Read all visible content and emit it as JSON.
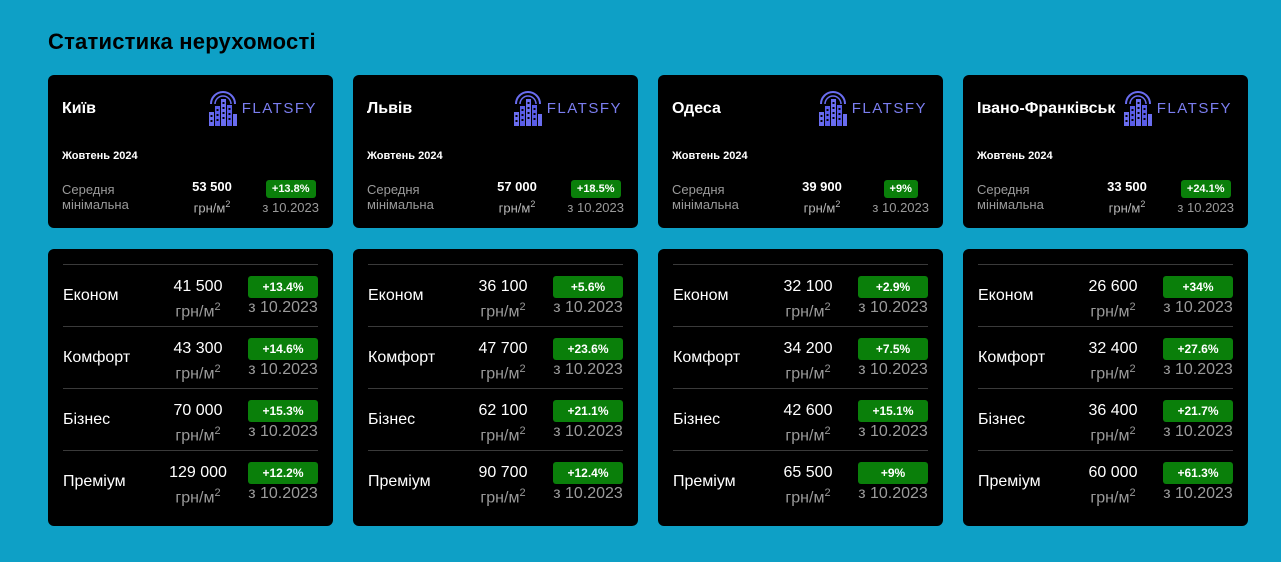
{
  "page_title": "Статистика нерухомості",
  "logo_text": "FLATSFY",
  "unit": "грн/м",
  "unit_sup": "2",
  "avg_label_line1": "Середня",
  "avg_label_line2": "мінімальна",
  "since_label": "з 10.2023",
  "cities": [
    {
      "name": "Київ",
      "period": "Жовтень 2024",
      "avg_value": "53 500",
      "avg_change": "+13.8%",
      "segments": [
        {
          "name": "Економ",
          "value": "41 500",
          "change": "+13.4%"
        },
        {
          "name": "Комфорт",
          "value": "43 300",
          "change": "+14.6%"
        },
        {
          "name": "Бізнес",
          "value": "70 000",
          "change": "+15.3%"
        },
        {
          "name": "Преміум",
          "value": "129 000",
          "change": "+12.2%"
        }
      ]
    },
    {
      "name": "Львів",
      "period": "Жовтень 2024",
      "avg_value": "57 000",
      "avg_change": "+18.5%",
      "segments": [
        {
          "name": "Економ",
          "value": "36 100",
          "change": "+5.6%"
        },
        {
          "name": "Комфорт",
          "value": "47 700",
          "change": "+23.6%"
        },
        {
          "name": "Бізнес",
          "value": "62 100",
          "change": "+21.1%"
        },
        {
          "name": "Преміум",
          "value": "90 700",
          "change": "+12.4%"
        }
      ]
    },
    {
      "name": "Одеса",
      "period": "Жовтень 2024",
      "avg_value": "39 900",
      "avg_change": "+9%",
      "segments": [
        {
          "name": "Економ",
          "value": "32 100",
          "change": "+2.9%"
        },
        {
          "name": "Комфорт",
          "value": "34 200",
          "change": "+7.5%"
        },
        {
          "name": "Бізнес",
          "value": "42 600",
          "change": "+15.1%"
        },
        {
          "name": "Преміум",
          "value": "65 500",
          "change": "+9%"
        }
      ]
    },
    {
      "name": "Івано-Франківськ",
      "period": "Жовтень 2024",
      "avg_value": "33 500",
      "avg_change": "+24.1%",
      "segments": [
        {
          "name": "Економ",
          "value": "26 600",
          "change": "+34%"
        },
        {
          "name": "Комфорт",
          "value": "32 400",
          "change": "+27.6%"
        },
        {
          "name": "Бізнес",
          "value": "36 400",
          "change": "+21.7%"
        },
        {
          "name": "Преміум",
          "value": "60 000",
          "change": "+61.3%"
        }
      ]
    }
  ],
  "colors": {
    "background": "#0ea0c6",
    "card": "#000000",
    "badge": "#0a7f0a",
    "logo": "#7b7ef0"
  },
  "icons": {
    "logo": "flatsfy-building-icon"
  }
}
